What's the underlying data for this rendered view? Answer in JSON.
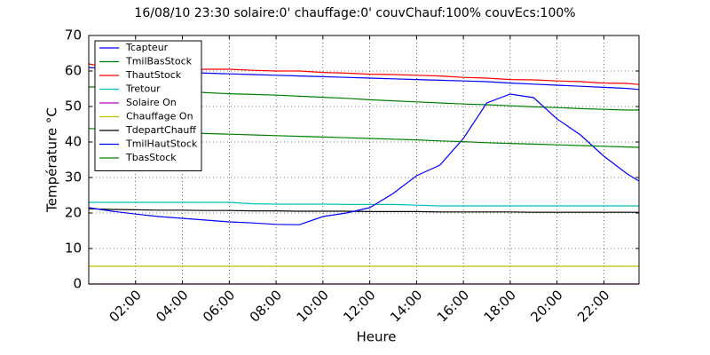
{
  "chart_data": {
    "type": "line",
    "title": "16/08/10 23:30  solaire:0'  chauffage:0'  couvChauf:100%  couvEcs:100%",
    "x_label": "Heure",
    "y_label": "Température °C",
    "x": [
      0,
      1,
      2,
      3,
      4,
      5,
      6,
      7,
      8,
      9,
      10,
      11,
      12,
      13,
      14,
      15,
      16,
      17,
      18,
      19,
      20,
      21,
      22,
      23,
      23.5
    ],
    "xlim": [
      0,
      23.5
    ],
    "xticks": [
      {
        "value": 2,
        "label": "02:00"
      },
      {
        "value": 4,
        "label": "04:00"
      },
      {
        "value": 6,
        "label": "06:00"
      },
      {
        "value": 8,
        "label": "08:00"
      },
      {
        "value": 10,
        "label": "10:00"
      },
      {
        "value": 12,
        "label": "12:00"
      },
      {
        "value": 14,
        "label": "14:00"
      },
      {
        "value": 16,
        "label": "16:00"
      },
      {
        "value": 18,
        "label": "18:00"
      },
      {
        "value": 20,
        "label": "20:00"
      },
      {
        "value": 22,
        "label": "22:00"
      }
    ],
    "ylim": [
      0,
      70
    ],
    "yticks": [
      0,
      10,
      20,
      30,
      40,
      50,
      60,
      70
    ],
    "grid": true,
    "legend": "upper-left",
    "series": [
      {
        "name": "Tcapteur",
        "color": "#0000ff",
        "values": [
          61,
          60.5,
          60,
          59.8,
          59.6,
          59.4,
          59.2,
          59,
          58.8,
          58.6,
          58.4,
          58.2,
          58,
          57.8,
          57.6,
          57.4,
          57.2,
          57,
          56.6,
          56.3,
          56,
          55.7,
          55.4,
          55.1,
          54.8
        ]
      },
      {
        "name": "TmilBasStock",
        "color": "#008000",
        "values": [
          55.5,
          55.5,
          55.3,
          55,
          54.3,
          53.9,
          53.6,
          53.4,
          53.2,
          52.9,
          52.6,
          52.3,
          51.9,
          51.6,
          51.3,
          51,
          50.7,
          50.5,
          50.2,
          49.9,
          49.7,
          49.4,
          49.2,
          49,
          49
        ]
      },
      {
        "name": "ThautStock",
        "color": "#ff0000",
        "values": [
          62,
          60.8,
          60.6,
          60.5,
          60.5,
          60.5,
          60.5,
          60.2,
          60,
          60,
          59.6,
          59.4,
          59.1,
          59,
          58.8,
          58.6,
          58.2,
          58,
          57.6,
          57.5,
          57.2,
          57,
          56.6,
          56.5,
          56.2
        ]
      },
      {
        "name": "Tretour",
        "color": "#00bfbf",
        "values": [
          23,
          23,
          23,
          23,
          23,
          23,
          23,
          22.6,
          22.5,
          22.5,
          22.5,
          22.4,
          22.4,
          22.4,
          22.2,
          22,
          22,
          22,
          22,
          22,
          22,
          22,
          22,
          22,
          22
        ]
      },
      {
        "name": "Solaire On",
        "color": "#bf00bf",
        "values": [
          0,
          0,
          0,
          0,
          0,
          0,
          0,
          0,
          0,
          0,
          0,
          0,
          0,
          0,
          0,
          0,
          0,
          0,
          0,
          0,
          0,
          0,
          0,
          0,
          0
        ]
      },
      {
        "name": "Chauffage On",
        "color": "#bfbf00",
        "values": [
          5,
          5,
          5,
          5,
          5,
          5,
          5,
          5,
          5,
          5,
          5,
          5,
          5,
          5,
          5,
          5,
          5,
          5,
          5,
          5,
          5,
          5,
          5,
          5,
          5
        ]
      },
      {
        "name": "TdepartChauff",
        "color": "#000000",
        "values": [
          21.2,
          21,
          20.9,
          20.8,
          20.8,
          20.7,
          20.7,
          20.6,
          20.6,
          20.5,
          20.5,
          20.5,
          20.4,
          20.4,
          20.4,
          20.3,
          20.3,
          20.3,
          20.3,
          20.2,
          20.2,
          20.2,
          20.2,
          20.2,
          20.2
        ]
      },
      {
        "name": "TmilHautStock",
        "color": "#0000ff",
        "values": [
          21.5,
          20.5,
          19.7,
          19,
          18.5,
          18,
          17.5,
          17.2,
          16.8,
          16.7,
          19,
          20,
          21.5,
          25.5,
          30.5,
          33.5,
          41,
          51,
          53.5,
          52.5,
          46.5,
          42,
          36,
          31,
          29
        ]
      },
      {
        "name": "TbasStock",
        "color": "#008000",
        "values": [
          43.8,
          43.5,
          43.2,
          42.9,
          42.6,
          42.4,
          42.2,
          42,
          41.8,
          41.6,
          41.4,
          41.2,
          41,
          40.8,
          40.6,
          40.3,
          40.1,
          39.8,
          39.6,
          39.4,
          39.2,
          39,
          38.8,
          38.6,
          38.5
        ]
      }
    ]
  }
}
